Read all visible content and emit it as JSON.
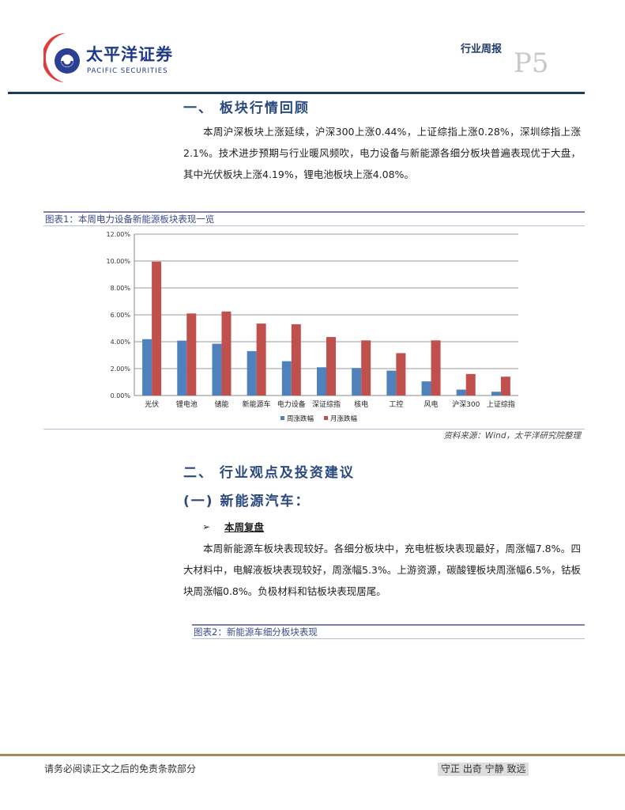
{
  "header": {
    "logo_cn": "太平洋证券",
    "logo_en": "PACIFIC SECURITIES",
    "report_type": "行业周报",
    "page": "P5"
  },
  "section1": {
    "title": "一、 板块行情回顾",
    "paragraph": "本周沪深板块上涨延续，沪深300上涨0.44%，上证综指上涨0.28%，深圳综指上涨2.1%。技术进步预期与行业暖风频吹，电力设备与新能源各细分板块普遍表现优于大盘，其中光伏板块上涨4.19%，锂电池板块上涨4.08%。"
  },
  "figure1": {
    "caption": "图表1：本周电力设备新能源板块表现一览",
    "source": "资料来源：Wind，太平洋研究院整理"
  },
  "chart_data": {
    "type": "bar",
    "categories": [
      "光伏",
      "锂电池",
      "储能",
      "新能源车",
      "电力设备",
      "深证综指",
      "核电",
      "工控",
      "风电",
      "沪深300",
      "上证综指"
    ],
    "series": [
      {
        "name": "周涨跌幅",
        "color": "#4f81bd",
        "values": [
          4.19,
          4.08,
          3.85,
          3.3,
          2.55,
          2.1,
          2.05,
          1.85,
          1.05,
          0.44,
          0.28
        ]
      },
      {
        "name": "月涨跌幅",
        "color": "#c0504d",
        "values": [
          9.95,
          6.1,
          6.25,
          5.35,
          5.3,
          4.35,
          4.1,
          3.15,
          4.1,
          1.6,
          1.4
        ]
      }
    ],
    "yticks": [
      "0.00%",
      "2.00%",
      "4.00%",
      "6.00%",
      "8.00%",
      "10.00%",
      "12.00%"
    ],
    "ylim": [
      0,
      12
    ],
    "grid": true,
    "legend": "bottom"
  },
  "section2": {
    "title": "二、 行业观点及投资建议",
    "subtitle": "(一) 新能源汽车：",
    "bullet": "本周复盘",
    "paragraph": "本周新能源车板块表现较好。各细分板块中，充电桩板块表现最好，周涨幅7.8%。四大材料中，电解液板块表现较好，周涨幅5.3%。上游资源，碳酸锂板块周涨幅6.5%，钴板块周涨幅0.8%。负极材料和钴板块表现居尾。"
  },
  "figure2": {
    "caption": "图表2：新能源车细分板块表现"
  },
  "footer": {
    "disclaimer": "请务必阅读正文之后的免责条款部分",
    "motto": "守正 出奇 宁静 致远"
  }
}
